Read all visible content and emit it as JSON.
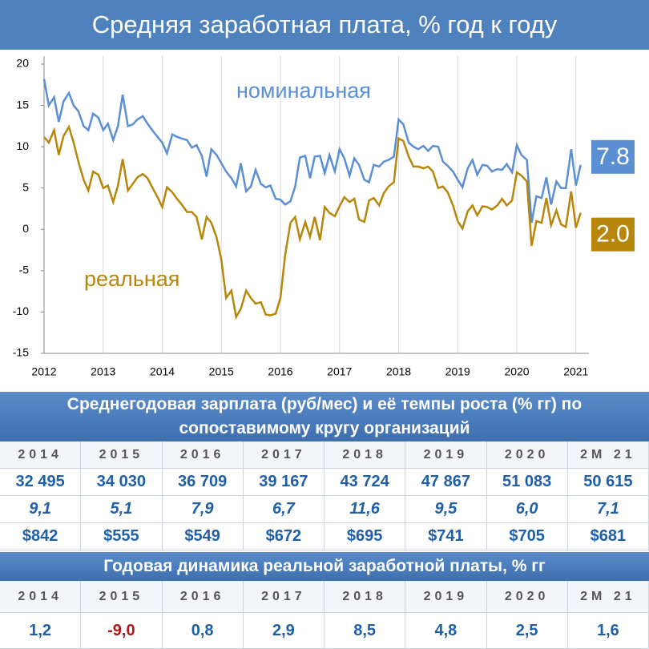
{
  "chart_data": {
    "type": "line",
    "title": "Средняя заработная плата, % год к году",
    "x": [
      2012,
      2012.08,
      2012.17,
      2012.25,
      2012.33,
      2012.42,
      2012.5,
      2012.58,
      2012.67,
      2012.75,
      2012.83,
      2012.92,
      2013,
      2013.08,
      2013.17,
      2013.25,
      2013.33,
      2013.42,
      2013.5,
      2013.58,
      2013.67,
      2013.75,
      2013.83,
      2013.92,
      2014,
      2014.08,
      2014.17,
      2014.25,
      2014.33,
      2014.42,
      2014.5,
      2014.58,
      2014.67,
      2014.75,
      2014.83,
      2014.92,
      2015,
      2015.08,
      2015.17,
      2015.25,
      2015.33,
      2015.42,
      2015.5,
      2015.58,
      2015.67,
      2015.75,
      2015.83,
      2015.92,
      2016,
      2016.08,
      2016.17,
      2016.25,
      2016.33,
      2016.42,
      2016.5,
      2016.58,
      2016.67,
      2016.75,
      2016.83,
      2016.92,
      2017,
      2017.08,
      2017.17,
      2017.25,
      2017.33,
      2017.42,
      2017.5,
      2017.58,
      2017.67,
      2017.75,
      2017.83,
      2017.92,
      2018,
      2018.08,
      2018.17,
      2018.25,
      2018.33,
      2018.42,
      2018.5,
      2018.58,
      2018.67,
      2018.75,
      2018.83,
      2018.92,
      2019,
      2019.08,
      2019.17,
      2019.25,
      2019.33,
      2019.42,
      2019.5,
      2019.58,
      2019.67,
      2019.75,
      2019.83,
      2019.92,
      2020,
      2020.08,
      2020.17,
      2020.25,
      2020.33,
      2020.42,
      2020.5,
      2020.58,
      2020.67,
      2020.75,
      2020.83,
      2020.92,
      2021,
      2021.08
    ],
    "series": [
      {
        "name": "номинальная",
        "color": "#5b8fd3",
        "end_label": "7.8",
        "values": [
          18.2,
          15.0,
          16.0,
          13.0,
          15.5,
          16.5,
          15.0,
          14.3,
          12.5,
          12.0,
          14.0,
          13.5,
          12.0,
          12.8,
          10.8,
          12.5,
          16.3,
          12.5,
          12.7,
          13.3,
          13.7,
          12.8,
          12.0,
          11.2,
          10.5,
          9.2,
          11.5,
          11.2,
          11.0,
          10.8,
          9.9,
          10.2,
          8.9,
          6.4,
          9.7,
          9.0,
          8.0,
          7.0,
          6.2,
          5.2,
          8.0,
          4.6,
          5.2,
          7.2,
          5.5,
          5.1,
          5.3,
          3.7,
          3.6,
          3.0,
          3.4,
          5.2,
          8.7,
          8.9,
          6.2,
          8.8,
          8.9,
          6.8,
          9.0,
          7.0,
          9.7,
          8.6,
          6.5,
          8.6,
          7.8,
          6.0,
          5.7,
          7.8,
          7.6,
          8.2,
          8.4,
          8.8,
          13.3,
          12.7,
          10.5,
          10.0,
          9.7,
          10.1,
          9.5,
          10.1,
          10.0,
          8.2,
          7.7,
          7.0,
          6.0,
          5.1,
          7.4,
          8.4,
          6.6,
          7.8,
          7.7,
          7.0,
          7.3,
          7.2,
          7.9,
          6.9,
          10.2,
          9.0,
          8.4,
          0.8,
          4.0,
          3.8,
          6.3,
          3.0,
          5.8,
          5.0,
          5.0,
          9.7,
          5.3,
          7.8
        ]
      },
      {
        "name": "реальная",
        "color": "#b8860b",
        "end_label": "2.0",
        "values": [
          11.2,
          10.5,
          12.0,
          9.0,
          11.3,
          12.4,
          10.5,
          8.2,
          6.0,
          4.7,
          7.0,
          6.6,
          5.0,
          5.3,
          3.3,
          5.3,
          8.5,
          4.7,
          5.5,
          6.3,
          6.7,
          6.2,
          5.1,
          3.9,
          2.7,
          5.1,
          4.5,
          3.7,
          3.0,
          2.1,
          2.1,
          1.5,
          -1.2,
          1.5,
          0.8,
          -1.0,
          -3.7,
          -8.3,
          -7.4,
          -10.6,
          -9.6,
          -7.4,
          -8.3,
          -9.0,
          -8.8,
          -10.3,
          -10.4,
          -10.2,
          -8.3,
          -3.1,
          0.8,
          1.5,
          -1.2,
          0.9,
          -0.9,
          1.5,
          -1.3,
          2.7,
          2.0,
          1.6,
          2.8,
          3.9,
          3.3,
          3.7,
          1.2,
          0.9,
          3.5,
          3.8,
          2.9,
          4.4,
          5.2,
          5.7,
          11.0,
          10.7,
          8.8,
          7.6,
          7.6,
          7.4,
          7.6,
          7.0,
          5.0,
          5.2,
          4.5,
          2.9,
          1.0,
          0.1,
          2.2,
          2.9,
          1.7,
          2.8,
          2.7,
          2.4,
          2.9,
          3.7,
          2.9,
          3.5,
          6.9,
          6.5,
          5.8,
          -2.0,
          1.0,
          0.8,
          3.8,
          0.5,
          2.3,
          0.6,
          0.3,
          4.6,
          0.2,
          2.0
        ]
      }
    ],
    "xlim": [
      2012,
      2021.22
    ],
    "xticks": [
      2012,
      2013,
      2014,
      2015,
      2016,
      2017,
      2018,
      2019,
      2020,
      2021
    ],
    "ylim": [
      -15,
      20
    ],
    "yticks": [
      -15,
      -10,
      -5,
      0,
      5,
      10,
      15,
      20
    ],
    "grid": "x"
  },
  "table1": {
    "title": "Среднегодовая зарплата (руб/мес) и её темпы роста (% гг)  по сопоставимому кругу организаций",
    "columns": [
      "2014",
      "2015",
      "2016",
      "2017",
      "2018",
      "2019",
      "2020",
      "2М 21"
    ],
    "rows": [
      [
        "32 495",
        "34 030",
        "36 709",
        "39 167",
        "43 724",
        "47 867",
        "51 083",
        "50 615"
      ],
      [
        "9,1",
        "5,1",
        "7,9",
        "6,7",
        "11,6",
        "9,5",
        "6,0",
        "7,1"
      ],
      [
        "$842",
        "$555",
        "$549",
        "$672",
        "$695",
        "$741",
        "$705",
        "$681"
      ]
    ]
  },
  "table2": {
    "title": "Годовая динамика реальной заработной платы, % гг",
    "columns": [
      "2014",
      "2015",
      "2016",
      "2017",
      "2018",
      "2019",
      "2020",
      "2М 21"
    ],
    "rows": [
      [
        "1,2",
        "-9,0",
        "0,8",
        "2,9",
        "8,5",
        "4,8",
        "2,5",
        "1,6"
      ]
    ]
  }
}
